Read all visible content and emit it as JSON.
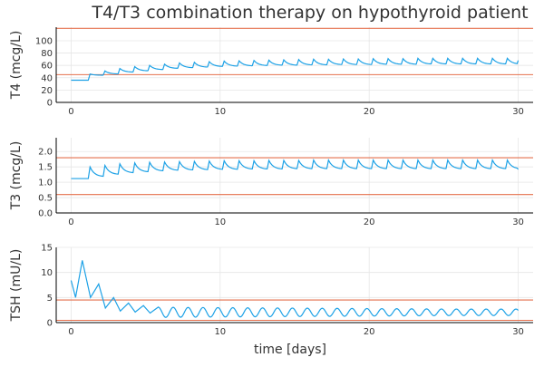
{
  "title": "T4/T3 combination therapy on hypothyroid patient",
  "xlabel": "time [days]",
  "colors": {
    "series": "#1ca1e6",
    "reference": "#e4704d",
    "grid": "#e6e6e6",
    "axis": "#000000"
  },
  "chart_data": [
    {
      "type": "line",
      "ylabel": "T4 (mcg/L)",
      "x_ticks": [
        0,
        10,
        20,
        30
      ],
      "y_ticks": [
        0,
        20,
        40,
        60,
        80,
        100
      ],
      "y_tick_labels": [
        "0",
        "20",
        "40",
        "60",
        "80",
        "100"
      ],
      "xlim": [
        -1,
        31
      ],
      "ylim": [
        0,
        122
      ],
      "grid": true,
      "reference_lines": [
        45,
        120
      ],
      "series": [
        {
          "baseline": 36,
          "x_start": 0,
          "x_end": 30,
          "first_dose_day": 1.15,
          "period_days": 1,
          "peaks": [
            46,
            51,
            55,
            58,
            60,
            62,
            64,
            65,
            66,
            67,
            67.5,
            68,
            68.5,
            69,
            69.5,
            70,
            70,
            70.5,
            70.5,
            71,
            71,
            71,
            71.5,
            71.5,
            71.5,
            71.5,
            71.5,
            71.5,
            71.5
          ],
          "troughs": [
            44,
            46,
            49,
            51,
            53,
            55,
            56,
            57,
            58,
            58.5,
            59,
            59.5,
            60,
            60,
            60.5,
            60.5,
            61,
            61,
            61,
            61.5,
            61.5,
            61.5,
            62,
            62,
            62,
            62,
            62,
            62,
            62
          ],
          "end_value": 68
        }
      ]
    },
    {
      "type": "line",
      "ylabel": "T3 (mcg/L)",
      "x_ticks": [
        0,
        10,
        20,
        30
      ],
      "y_ticks": [
        0,
        0.5,
        1.0,
        1.5,
        2.0
      ],
      "y_tick_labels": [
        "0.0",
        "0.5",
        "1.0",
        "1.5",
        "2.0"
      ],
      "xlim": [
        -1,
        31
      ],
      "ylim": [
        0,
        2.45
      ],
      "grid": true,
      "reference_lines": [
        0.6,
        1.8
      ],
      "series": [
        {
          "baseline": 1.12,
          "x_start": 0,
          "x_end": 30,
          "first_dose_day": 1.15,
          "period_days": 1,
          "peaks": [
            1.5,
            1.55,
            1.6,
            1.63,
            1.65,
            1.66,
            1.67,
            1.68,
            1.69,
            1.7,
            1.7,
            1.7,
            1.71,
            1.71,
            1.71,
            1.72,
            1.72,
            1.72,
            1.72,
            1.72,
            1.72,
            1.72,
            1.72,
            1.72,
            1.72,
            1.72,
            1.72,
            1.72,
            1.72
          ],
          "troughs": [
            1.18,
            1.25,
            1.3,
            1.33,
            1.36,
            1.38,
            1.39,
            1.4,
            1.41,
            1.41,
            1.42,
            1.42,
            1.42,
            1.43,
            1.43,
            1.43,
            1.43,
            1.43,
            1.43,
            1.43,
            1.43,
            1.43,
            1.43,
            1.43,
            1.43,
            1.43,
            1.43,
            1.43,
            1.43
          ],
          "end_value": 1.42
        }
      ]
    },
    {
      "type": "line",
      "ylabel": "TSH (mU/L)",
      "xlabel": "time [days]",
      "x_ticks": [
        0,
        10,
        20,
        30
      ],
      "y_ticks": [
        0,
        5,
        10,
        15
      ],
      "y_tick_labels": [
        "0",
        "5",
        "10",
        "15"
      ],
      "xlim": [
        -1,
        31
      ],
      "ylim": [
        0,
        15
      ],
      "grid": true,
      "reference_lines": [
        0.45,
        4.5
      ],
      "series": [
        {
          "x_start": 0,
          "x_end": 30,
          "points": [
            [
              0,
              8.4
            ],
            [
              0.3,
              5.0
            ],
            [
              0.75,
              12.4
            ],
            [
              1.3,
              5.0
            ],
            [
              1.85,
              7.7
            ],
            [
              2.3,
              2.9
            ],
            [
              2.85,
              5.0
            ],
            [
              3.3,
              2.3
            ],
            [
              3.85,
              3.9
            ],
            [
              4.3,
              2.1
            ],
            [
              4.85,
              3.4
            ],
            [
              5.3,
              1.9
            ],
            [
              5.85,
              3.1
            ]
          ],
          "steady_min": 1.4,
          "steady_max": 2.7,
          "period_days": 1,
          "end_value": 1.7
        }
      ]
    }
  ]
}
